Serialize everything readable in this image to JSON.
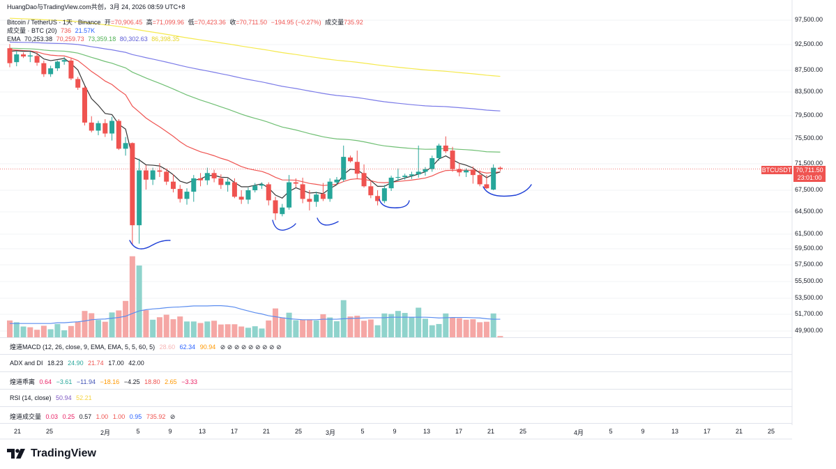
{
  "header": {
    "line1": "HuangDao与TradingView.com共创，3月 24, 2026 08:59 UTC+8",
    "symbol": "Bitcoin / TetherUS · 1天 · Binance",
    "open_label": "开",
    "open": "=70,906.45",
    "high_label": "高",
    "high": "=71,099.96",
    "low_label": "低",
    "low": "=70,423.36",
    "close_label": "收",
    "close": "=70,711.50",
    "change": "−194.95 (−0.27%)",
    "vol_label": "成交量",
    "vol": "735.92",
    "volline_label": "成交量 · BTC (20)",
    "volline_v1": "736",
    "volline_v2": "21.57K",
    "ema_label": "EMA",
    "ema1": "70,253.38",
    "ema2": "70,259.73",
    "ema3": "73,359.18",
    "ema4": "80,302.63",
    "ema5": "86,398.35"
  },
  "price_badge": {
    "symbol": "BTCUSDT",
    "price": "70,711.50",
    "countdown": "23:01:00"
  },
  "y_axis": [
    "97,500.00",
    "92,500.00",
    "87,500.00",
    "83,500.00",
    "79,500.00",
    "75,500.00",
    "71,500.00",
    "67,500.00",
    "64,500.00",
    "61,500.00",
    "59,500.00",
    "57,500.00",
    "55,500.00",
    "53,500.00",
    "51,700.00",
    "49,900.00"
  ],
  "x_axis": [
    "21",
    "25",
    "2月",
    "5",
    "9",
    "13",
    "17",
    "21",
    "25",
    "3月",
    "5",
    "9",
    "13",
    "17",
    "21",
    "25",
    "4月",
    "5",
    "9",
    "13",
    "17",
    "21",
    "25"
  ],
  "panes": {
    "macd": {
      "label": "煌道MACD (12, 26, close, 9, EMA, EMA, 5, 5, 60, 5)",
      "v1": "28.60",
      "v2": "62.34",
      "v3": "90.94",
      "marks": "⊘ ⊘ ⊘ ⊘ ⊘ ⊘ ⊘ ⊘ ⊘"
    },
    "adx": {
      "label": "ADX and DI",
      "v1": "18.23",
      "v2": "24.90",
      "v3": "21.74",
      "v4": "17.00",
      "v5": "42.00"
    },
    "dev": {
      "label": "煌道乖离",
      "v1": "0.64",
      "v2": "−3.61",
      "v3": "−11.94",
      "v4": "−18.16",
      "v5": "−4.25",
      "v6": "18.80",
      "v7": "2.65",
      "v8": "−3.33"
    },
    "rsi": {
      "label": "RSI (14, close)",
      "v1": "50.94",
      "v2": "52.21"
    },
    "vol": {
      "label": "煌道成交量",
      "v1": "0.03",
      "v2": "0.25",
      "v3": "0.57",
      "v4": "1.00",
      "v5": "1.00",
      "v6": "0.95",
      "v7": "735.92",
      "mark": "⊘"
    }
  },
  "logo_text": "TradingView",
  "colors": {
    "up": "#26a69a",
    "down": "#ef5350",
    "ema_yellow": "#f5e94d",
    "ema_blue": "#7b7be8",
    "ema_green": "#6fbf73",
    "ema_red": "#ef5350",
    "ema_black": "#333333",
    "annotation": "#1e3fd6"
  },
  "chart_data": {
    "type": "candlestick",
    "title": "Bitcoin / TetherUS · 1天 · Binance",
    "ylim": [
      49000,
      99000
    ],
    "candles": [
      [
        91800,
        92600,
        88100,
        88900
      ],
      [
        89100,
        91300,
        88300,
        90600
      ],
      [
        90600,
        91000,
        89900,
        90200
      ],
      [
        90200,
        91100,
        89100,
        90400
      ],
      [
        90300,
        91000,
        88400,
        89000
      ],
      [
        88900,
        89400,
        86300,
        86800
      ],
      [
        86800,
        88400,
        86300,
        87900
      ],
      [
        87900,
        89400,
        87400,
        89200
      ],
      [
        89200,
        90100,
        88600,
        89500
      ],
      [
        89400,
        89800,
        85700,
        86000
      ],
      [
        85900,
        86300,
        83900,
        84300
      ],
      [
        84300,
        84600,
        77800,
        78300
      ],
      [
        78300,
        79400,
        76600,
        76900
      ],
      [
        76900,
        78600,
        76100,
        78200
      ],
      [
        78200,
        78900,
        75800,
        76400
      ],
      [
        76400,
        79300,
        75200,
        78600
      ],
      [
        78600,
        78900,
        73700,
        73900
      ],
      [
        73900,
        75800,
        72800,
        74800
      ],
      [
        74800,
        74900,
        60000,
        62700
      ],
      [
        62700,
        72300,
        60200,
        70500
      ],
      [
        70500,
        71300,
        67600,
        69100
      ],
      [
        69100,
        70900,
        68300,
        70500
      ],
      [
        70500,
        71600,
        69500,
        70300
      ],
      [
        70300,
        70800,
        68300,
        68800
      ],
      [
        68800,
        69900,
        67200,
        67700
      ],
      [
        67700,
        68300,
        65800,
        66300
      ],
      [
        66300,
        67800,
        65500,
        67300
      ],
      [
        67300,
        69800,
        65900,
        69300
      ],
      [
        69300,
        70100,
        68100,
        69000
      ],
      [
        69000,
        70900,
        68300,
        70100
      ],
      [
        70100,
        70600,
        68700,
        69300
      ],
      [
        69300,
        69900,
        67700,
        68300
      ],
      [
        68300,
        69300,
        67300,
        68800
      ],
      [
        68700,
        69300,
        66400,
        66600
      ],
      [
        66600,
        67500,
        65600,
        66200
      ],
      [
        66200,
        67900,
        65600,
        67500
      ],
      [
        67500,
        68600,
        67200,
        68200
      ],
      [
        68200,
        68700,
        67700,
        68400
      ],
      [
        68400,
        68700,
        65400,
        66100
      ],
      [
        66100,
        66600,
        63400,
        64300
      ],
      [
        64200,
        65600,
        63900,
        65100
      ],
      [
        65100,
        69800,
        64800,
        68700
      ],
      [
        68700,
        69300,
        67900,
        68500
      ],
      [
        68400,
        69400,
        65700,
        66300
      ],
      [
        66300,
        67500,
        64700,
        65900
      ],
      [
        65900,
        67300,
        65200,
        66900
      ],
      [
        67000,
        68600,
        66000,
        66300
      ],
      [
        66300,
        69300,
        65900,
        68800
      ],
      [
        68700,
        69500,
        68300,
        69100
      ],
      [
        69100,
        74400,
        68800,
        72600
      ],
      [
        72500,
        72800,
        71700,
        71900
      ],
      [
        71800,
        73600,
        69200,
        70000
      ],
      [
        70100,
        71400,
        67900,
        68100
      ],
      [
        68100,
        69000,
        66400,
        66800
      ],
      [
        66700,
        67500,
        65400,
        66000
      ],
      [
        66000,
        68300,
        65700,
        67800
      ],
      [
        67800,
        69700,
        67400,
        69400
      ],
      [
        69400,
        70800,
        68900,
        69500
      ],
      [
        69500,
        70000,
        69100,
        69700
      ],
      [
        69700,
        70300,
        69200,
        69900
      ],
      [
        69900,
        74400,
        69400,
        70300
      ],
      [
        70300,
        71000,
        69700,
        70700
      ],
      [
        70700,
        72800,
        70300,
        72400
      ],
      [
        72400,
        74700,
        72000,
        74400
      ],
      [
        74400,
        75900,
        73200,
        73500
      ],
      [
        73600,
        74200,
        70300,
        70700
      ],
      [
        70700,
        71600,
        69600,
        70200
      ],
      [
        70200,
        70800,
        69500,
        70500
      ],
      [
        70600,
        71100,
        68500,
        69800
      ],
      [
        69800,
        70500,
        68100,
        68400
      ],
      [
        68400,
        69800,
        67700,
        67800
      ],
      [
        67600,
        71400,
        67500,
        70900
      ],
      [
        70900,
        71100,
        70400,
        70700
      ]
    ],
    "volume": [
      [
        0.67,
        "dn"
      ],
      [
        0.6,
        "up"
      ],
      [
        0.43,
        "up"
      ],
      [
        0.4,
        "dn"
      ],
      [
        0.3,
        "dn"
      ],
      [
        0.46,
        "dn"
      ],
      [
        0.32,
        "up"
      ],
      [
        0.53,
        "up"
      ],
      [
        0.28,
        "up"
      ],
      [
        0.45,
        "dn"
      ],
      [
        0.61,
        "dn"
      ],
      [
        1.05,
        "dn"
      ],
      [
        0.96,
        "dn"
      ],
      [
        0.69,
        "up"
      ],
      [
        0.62,
        "dn"
      ],
      [
        0.99,
        "up"
      ],
      [
        1.07,
        "dn"
      ],
      [
        1.45,
        "dn"
      ],
      [
        3.23,
        "dn"
      ],
      [
        2.86,
        "up"
      ],
      [
        1.08,
        "dn"
      ],
      [
        0.7,
        "up"
      ],
      [
        0.8,
        "dn"
      ],
      [
        0.9,
        "dn"
      ],
      [
        0.72,
        "dn"
      ],
      [
        0.83,
        "dn"
      ],
      [
        0.63,
        "up"
      ],
      [
        0.63,
        "up"
      ],
      [
        0.57,
        "dn"
      ],
      [
        0.63,
        "up"
      ],
      [
        0.66,
        "dn"
      ],
      [
        0.51,
        "dn"
      ],
      [
        0.52,
        "dn"
      ],
      [
        0.52,
        "dn"
      ],
      [
        0.43,
        "dn"
      ],
      [
        0.38,
        "up"
      ],
      [
        0.44,
        "up"
      ],
      [
        0.35,
        "up"
      ],
      [
        0.67,
        "dn"
      ],
      [
        1.15,
        "dn"
      ],
      [
        0.79,
        "dn"
      ],
      [
        0.98,
        "up"
      ],
      [
        0.68,
        "up"
      ],
      [
        0.7,
        "dn"
      ],
      [
        0.71,
        "dn"
      ],
      [
        0.67,
        "up"
      ],
      [
        0.92,
        "dn"
      ],
      [
        0.79,
        "up"
      ],
      [
        0.64,
        "up"
      ],
      [
        1.48,
        "up"
      ],
      [
        0.83,
        "dn"
      ],
      [
        0.86,
        "dn"
      ],
      [
        0.66,
        "dn"
      ],
      [
        0.71,
        "dn"
      ],
      [
        0.48,
        "up"
      ],
      [
        0.95,
        "up"
      ],
      [
        0.93,
        "up"
      ],
      [
        1.05,
        "up"
      ],
      [
        0.97,
        "up"
      ],
      [
        0.81,
        "up"
      ],
      [
        1.18,
        "up"
      ],
      [
        0.74,
        "up"
      ],
      [
        0.48,
        "up"
      ],
      [
        0.53,
        "up"
      ],
      [
        0.95,
        "up"
      ],
      [
        0.79,
        "dn"
      ],
      [
        0.76,
        "dn"
      ],
      [
        0.7,
        "dn"
      ],
      [
        0.72,
        "dn"
      ],
      [
        0.6,
        "dn"
      ],
      [
        0.62,
        "dn"
      ],
      [
        0.95,
        "up"
      ],
      [
        0.05,
        "dn"
      ]
    ],
    "volume_ma": [
      0.55,
      0.55,
      0.55,
      0.55,
      0.55,
      0.55,
      0.55,
      0.58,
      0.58,
      0.6,
      0.62,
      0.65,
      0.7,
      0.72,
      0.73,
      0.76,
      0.79,
      0.84,
      0.95,
      1.05,
      1.1,
      1.13,
      1.15,
      1.18,
      1.2,
      1.21,
      1.23,
      1.25,
      1.25,
      1.25,
      1.26,
      1.26,
      1.24,
      1.2,
      1.12,
      1.05,
      0.98,
      0.93,
      0.86,
      0.82,
      0.78,
      0.74,
      0.72,
      0.7,
      0.7,
      0.7,
      0.72,
      0.72,
      0.72,
      0.74,
      0.75,
      0.76,
      0.77,
      0.78,
      0.78,
      0.78,
      0.8,
      0.8,
      0.8,
      0.8,
      0.8,
      0.8,
      0.79,
      0.77,
      0.78,
      0.79,
      0.79,
      0.79,
      0.78,
      0.77,
      0.74,
      0.72,
      0.72
    ],
    "ema_series": [
      {
        "name": "EMA 200",
        "color": "#f5e94d",
        "start": 97900,
        "end": 86398
      },
      {
        "name": "EMA 120",
        "color": "#7b7be8",
        "start": 93000,
        "end": 80302
      },
      {
        "name": "EMA 60",
        "color": "#6fbf73",
        "start": 91800,
        "end": 73359
      },
      {
        "name": "EMA 20",
        "color": "#ef5350",
        "start": 91500,
        "end": 70259
      },
      {
        "name": "EMA 5",
        "color": "#333333",
        "start": 91200,
        "end": 70253
      }
    ],
    "annotations": [
      "support-curve",
      "support-curve",
      "support-curve",
      "support-curve",
      "support-curve"
    ]
  }
}
